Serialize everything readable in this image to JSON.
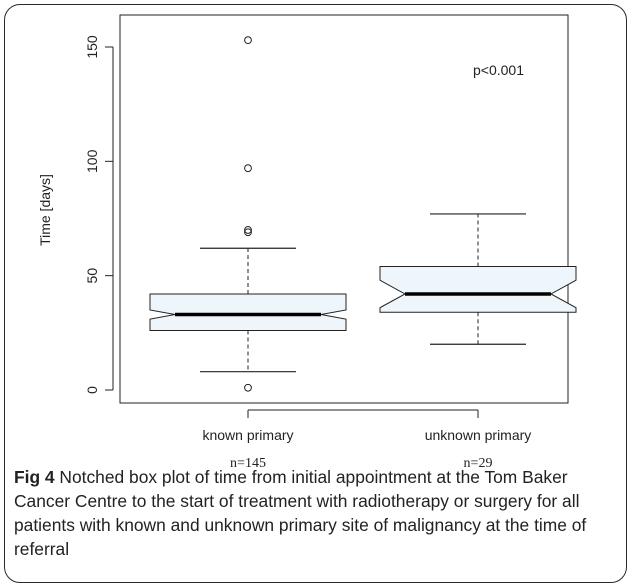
{
  "chart_data": {
    "type": "boxplot",
    "notched": true,
    "ylabel": "Time [days]",
    "xlabel": "",
    "ylim": [
      0,
      155
    ],
    "yticks": [
      0,
      50,
      100,
      150
    ],
    "annotation": "p<0.001",
    "box_fill": "#eef6fc",
    "categories": [
      "known primary",
      "unknown primary"
    ],
    "counts": [
      "n=145",
      "n=29"
    ],
    "groups": [
      {
        "label": "known primary",
        "n": "n=145",
        "q1": 26,
        "median": 33,
        "q3": 42,
        "whisker_low": 8,
        "whisker_high": 62,
        "notch_low": 31,
        "notch_high": 35,
        "outliers": [
          1,
          69,
          70,
          97,
          153
        ]
      },
      {
        "label": "unknown primary",
        "n": "n=29",
        "q1": 34,
        "median": 42,
        "q3": 54,
        "whisker_low": 20,
        "whisker_high": 77,
        "notch_low": 36,
        "notch_high": 48,
        "outliers": []
      }
    ]
  },
  "caption": {
    "label": "Fig 4",
    "text": " Notched box plot of time from initial appointment at the Tom Baker Cancer Centre to the start of treatment with radiotherapy or surgery for all patients with known and unknown primary site of malignancy at the time of referral"
  }
}
